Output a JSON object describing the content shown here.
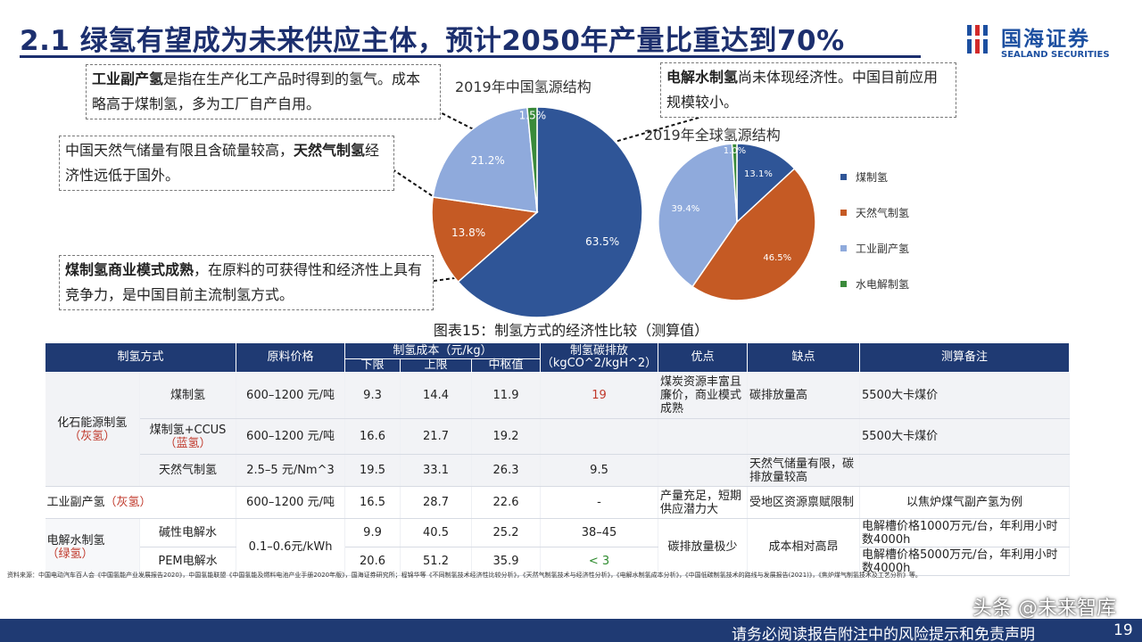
{
  "title": "2.1 绿氢有望成为未来供应主体，预计2050年产量比重达到70%",
  "logo": {
    "cn": "国海证券",
    "en": "SEALAND SECURITIES",
    "color": "#1c4fa0"
  },
  "notes": {
    "industrial": {
      "bold": "工业副产氢",
      "text": "是指在生产化工产品时得到的氢气。成本略高于煤制氢，多为工厂自产自用。"
    },
    "gas": {
      "text": "中国天然气储量有限且含硫量较高，",
      "bold": "天然气制氢",
      "tail": "经济性远低于国外。"
    },
    "coal": {
      "bold": "煤制氢商业模式成熟",
      "text": "，在原料的可获得性和经济性上具有竞争力，是中国目前主流制氢方式。"
    },
    "electro": {
      "bold": "电解水制氢",
      "text": "尚未体现经济性。中国目前应用规模较小。"
    }
  },
  "chart_data": [
    {
      "type": "pie",
      "title": "2019年中国氢源结构",
      "categories": [
        "煤制氢",
        "天然气制氢",
        "工业副产氢",
        "水电解制氢"
      ],
      "values": [
        63.5,
        13.8,
        21.2,
        1.5
      ],
      "labels": [
        "63.5%",
        "13.8%",
        "21.2%",
        "1.5%"
      ],
      "colors": [
        "#2f5597",
        "#c55a24",
        "#8faadc",
        "#3a8a3a"
      ]
    },
    {
      "type": "pie",
      "title": "2019年全球氢源结构",
      "categories": [
        "煤制氢",
        "天然气制氢",
        "工业副产氢",
        "水电解制氢"
      ],
      "values": [
        13.1,
        46.5,
        39.4,
        1.0
      ],
      "labels": [
        "13.1%",
        "46.5%",
        "39.4%",
        "1.0%"
      ],
      "colors": [
        "#2f5597",
        "#c55a24",
        "#8faadc",
        "#3a8a3a"
      ],
      "legend": "right"
    },
    {
      "type": "table",
      "title": "图表15：制氢方式的经济性比较（测算值）",
      "headers": {
        "method": "制氢方式",
        "price": "原料价格",
        "cost": "制氢成本（元/kg）",
        "low": "下限",
        "high": "上限",
        "mid": "中枢值",
        "emission": "制氢碳排放（kgCO^2/kgH^2）",
        "pros": "优点",
        "cons": "缺点",
        "remark": "测算备注"
      },
      "groups": {
        "fossil": {
          "name": "化石能源制氢",
          "tag": "（灰氢）"
        },
        "industrial": {
          "name": "工业副产氢",
          "tag": "（灰氢）"
        },
        "electro": {
          "name": "电解水制氢",
          "tag": "（绿氢）"
        }
      },
      "rows": [
        {
          "sub": "煤制氢",
          "sub_tag": "",
          "price": "600–1200 元/吨",
          "low": "9.3",
          "high": "14.4",
          "mid": "11.9",
          "emission": "19"
        },
        {
          "sub": "煤制氢+CCUS",
          "sub_tag": "（蓝氢）",
          "price": "600–1200 元/吨",
          "low": "16.6",
          "high": "21.7",
          "mid": "19.2",
          "emission": ""
        },
        {
          "sub": "天然气制氢",
          "sub_tag": "",
          "price": "2.5–5 元/Nm^3",
          "low": "19.5",
          "high": "33.1",
          "mid": "26.3",
          "emission": "9.5"
        },
        {
          "sub": "",
          "sub_tag": "",
          "price": "600–1200 元/吨",
          "low": "16.5",
          "high": "28.7",
          "mid": "22.6",
          "emission": "-"
        },
        {
          "sub": "碱性电解水",
          "sub_tag": "",
          "price": "0.1–0.6元/kWh",
          "low": "9.9",
          "high": "40.5",
          "mid": "25.2",
          "emission": "38–45"
        },
        {
          "sub": "PEM电解水",
          "sub_tag": "",
          "price": "",
          "low": "20.6",
          "high": "51.2",
          "mid": "35.9",
          "emission": "< 3"
        }
      ],
      "pros": {
        "coal": "煤炭资源丰富且廉价，商业模式成熟",
        "industrial": "产量充足，短期供应潜力大",
        "electro": "碳排放量极少"
      },
      "cons": {
        "coal": "碳排放量高",
        "gas": "天然气储量有限，碳排放量较高",
        "industrial": "受地区资源禀赋限制",
        "electro": "成本相对高昂"
      },
      "remarks": {
        "coal": "5500大卡煤价",
        "ccus": "5500大卡煤价",
        "industrial": "以焦炉煤气副产氢为例",
        "alk": "电解槽价格1000万元/台，年利用小时数4000h",
        "pem": "电解槽价格5000万元/台，年利用小时数4000h"
      }
    }
  ],
  "sources": "资料来源：中国电动汽车百人会《中国氢能产业发展报告2020》，中国氢能联盟《中国氢能及燃料电池产业手册2020年版》，国海证券研究所；程锦华等《不同制氢技术经济性比较分析》，《天然气制氢技术与经济性分析》，《电解水制氢成本分析》，《中国低碳制氢技术的路线与发展报告(2021)》，《焦炉煤气制氢技术及工艺分析》等。",
  "footer": "请务必阅读报告附注中的风险提示和免责声明",
  "page": "19",
  "watermark": "头条 @未来智库"
}
